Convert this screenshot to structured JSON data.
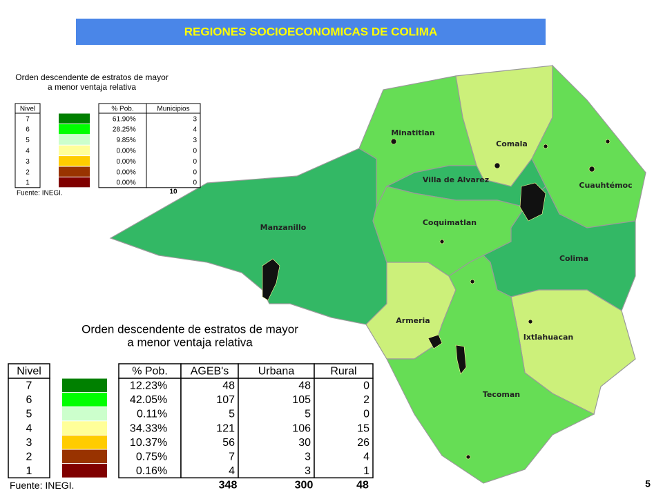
{
  "title": "REGIONES SOCIOECONOMICAS DE COLIMA",
  "small_legend": {
    "title_lines": [
      "Orden descendente de estratos de mayor",
      "a menor ventaja relativa"
    ],
    "headers": [
      "Nivel",
      "% Pob.",
      "Municipios"
    ],
    "rows": [
      [
        "7",
        "61.90%",
        "3"
      ],
      [
        "6",
        "28.25%",
        "4"
      ],
      [
        "5",
        "9.85%",
        "3"
      ],
      [
        "4",
        "0.00%",
        "0"
      ],
      [
        "3",
        "0.00%",
        "0"
      ],
      [
        "2",
        "0.00%",
        "0"
      ],
      [
        "1",
        "0.00%",
        "0"
      ]
    ],
    "colors": [
      "#008000",
      "#00ff00",
      "#ccffcc",
      "#ffff99",
      "#ffcc00",
      "#993300",
      "#800000"
    ],
    "totals": [
      "10"
    ],
    "source": "Fuente: INEGI."
  },
  "large_legend": {
    "title_lines": [
      "Orden descendente de estratos de mayor",
      "a menor ventaja relativa"
    ],
    "headers": [
      "Nivel",
      "% Pob.",
      "AGEB's",
      "Urbana",
      "Rural"
    ],
    "rows": [
      [
        "7",
        "12.23%",
        "48",
        "48",
        "0"
      ],
      [
        "6",
        "42.05%",
        "107",
        "105",
        "2"
      ],
      [
        "5",
        "0.11%",
        "5",
        "5",
        "0"
      ],
      [
        "4",
        "34.33%",
        "121",
        "106",
        "15"
      ],
      [
        "3",
        "10.37%",
        "56",
        "30",
        "26"
      ],
      [
        "2",
        "0.75%",
        "7",
        "3",
        "4"
      ],
      [
        "1",
        "0.16%",
        "4",
        "3",
        "1"
      ]
    ],
    "colors": [
      "#008000",
      "#00ff00",
      "#ccffcc",
      "#ffff99",
      "#ffcc00",
      "#993300",
      "#800000"
    ],
    "totals": [
      "348",
      "300",
      "48"
    ],
    "source": "Fuente: INEGI."
  },
  "municipalities": [
    "Minatitlan",
    "Comala",
    "Villa de Alvarez",
    "Cuauhtémoc",
    "Manzanillo",
    "Coquimatlan",
    "Colima",
    "Armeria",
    "Ixtlahuacan",
    "Tecoman"
  ],
  "page_number": "5"
}
